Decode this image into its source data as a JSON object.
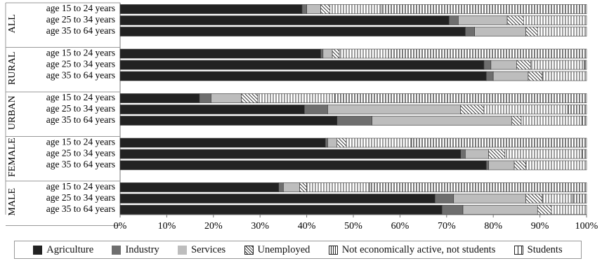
{
  "chart_data": {
    "type": "bar",
    "orientation": "horizontal",
    "stacked": true,
    "xlim": [
      0,
      100
    ],
    "x_ticks": [
      "0%",
      "10%",
      "20%",
      "30%",
      "40%",
      "50%",
      "60%",
      "70%",
      "80%",
      "90%",
      "100%"
    ],
    "legend_position": "bottom",
    "categories": [
      "age 15 to 24 years",
      "age 25 to 34 years",
      "age 35 to 64 years"
    ],
    "groups": [
      {
        "name": "ALL",
        "rows": [
          {
            "label": "age 15 to 24 years",
            "values": [
              39,
              1,
              3,
              2,
              11,
              44
            ]
          },
          {
            "label": "age 25 to 34 years",
            "values": [
              70.5,
              2,
              10.5,
              3.5,
              13.5,
              0
            ]
          },
          {
            "label": "age 35 to 64 years",
            "values": [
              74,
              2,
              11,
              2.5,
              10.5,
              0
            ]
          }
        ]
      },
      {
        "name": "RURAL",
        "rows": [
          {
            "label": "age 15 to 24 years",
            "values": [
              43,
              0.5,
              2,
              1.5,
              10.5,
              42.5
            ]
          },
          {
            "label": "age 25 to 34 years",
            "values": [
              78,
              1.5,
              5.5,
              3,
              11.5,
              0.5
            ]
          },
          {
            "label": "age 35 to 64 years",
            "values": [
              78.5,
              1.5,
              7.5,
              3,
              9.5,
              0
            ]
          }
        ]
      },
      {
        "name": "URBAN",
        "rows": [
          {
            "label": "age 15 to 24 years",
            "values": [
              17,
              2.5,
              6.5,
              3.5,
              16.5,
              54
            ]
          },
          {
            "label": "age 25 to 34 years",
            "values": [
              39.5,
              5,
              28.5,
              5,
              18,
              4
            ]
          },
          {
            "label": "age 35 to 64 years",
            "values": [
              46.5,
              7.5,
              30,
              2,
              13,
              1
            ]
          }
        ]
      },
      {
        "name": "FEMALE",
        "rows": [
          {
            "label": "age 15 to 24 years",
            "values": [
              44,
              0.5,
              2,
              2,
              14,
              37.5
            ]
          },
          {
            "label": "age 25 to 34 years",
            "values": [
              73,
              1,
              5,
              3.5,
              16.5,
              1
            ]
          },
          {
            "label": "age 35 to 64 years",
            "values": [
              78.5,
              0.5,
              5.5,
              2.5,
              13,
              0
            ]
          }
        ]
      },
      {
        "name": "MALE",
        "rows": [
          {
            "label": "age 15 to 24 years",
            "values": [
              34,
              1,
              3.5,
              1.5,
              13.5,
              46.5
            ]
          },
          {
            "label": "age 25 to 34 years",
            "values": [
              67.5,
              4,
              15.5,
              3.5,
              6.5,
              3
            ]
          },
          {
            "label": "age 35 to 64 years",
            "values": [
              69,
              4.5,
              16,
              3,
              7.5,
              0
            ]
          }
        ]
      }
    ],
    "series": [
      {
        "name": "Agriculture",
        "color": "#222222",
        "pattern": "solid"
      },
      {
        "name": "Industry",
        "color": "#6e6e6e",
        "pattern": "solid"
      },
      {
        "name": "Services",
        "color": "#bdbdbd",
        "pattern": "solid"
      },
      {
        "name": "Unemployed",
        "color": "#ffffff",
        "pattern": "diagonal"
      },
      {
        "name": "Not economically active, not students",
        "color": "#ffffff",
        "pattern": "vertical-dense"
      },
      {
        "name": "Students",
        "color": "#ffffff",
        "pattern": "vertical-sparse"
      }
    ]
  }
}
